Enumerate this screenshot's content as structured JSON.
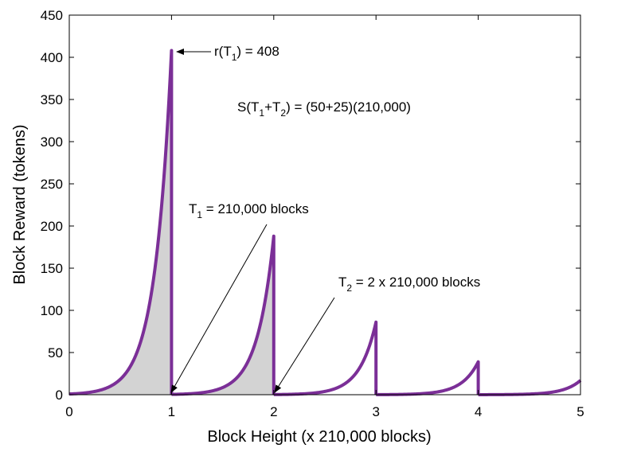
{
  "chart_data": {
    "type": "area",
    "xlabel": "Block Height (x 210,000 blocks)",
    "ylabel": "Block Reward (tokens)",
    "xlim": [
      0,
      5
    ],
    "ylim": [
      0,
      450
    ],
    "xticks": [
      "0",
      "1",
      "2",
      "3",
      "4",
      "5"
    ],
    "yticks": [
      "0",
      "50",
      "100",
      "150",
      "200",
      "250",
      "300",
      "350",
      "400",
      "450"
    ],
    "grid": false,
    "line_color": "#7b2f97",
    "fill_color": "#d3d3d3",
    "series": [
      {
        "peaks": [
          {
            "x_start": 0,
            "x_end": 1,
            "peak": 408
          },
          {
            "x_start": 1,
            "x_end": 2,
            "peak": 188
          },
          {
            "x_start": 2,
            "x_end": 3,
            "peak": 86
          },
          {
            "x_start": 3,
            "x_end": 4,
            "peak": 39
          },
          {
            "x_start": 4,
            "x_end": 5,
            "peak": 17
          }
        ],
        "shaded_x": [
          0,
          2
        ]
      }
    ],
    "annotations": {
      "r_prefix": "r(T",
      "r_sub": "1",
      "r_suffix": ") = 408",
      "s_prefix": "S(T",
      "s_sub1": "1",
      "s_mid": "+T",
      "s_sub2": "2",
      "s_suffix": ") = (50+25)(210,000)",
      "t1_prefix": "T",
      "t1_sub": "1",
      "t1_suffix": " = 210,000 blocks",
      "t2_prefix": "T",
      "t2_sub": "2",
      "t2_suffix": " = 2 x 210,000 blocks"
    }
  }
}
